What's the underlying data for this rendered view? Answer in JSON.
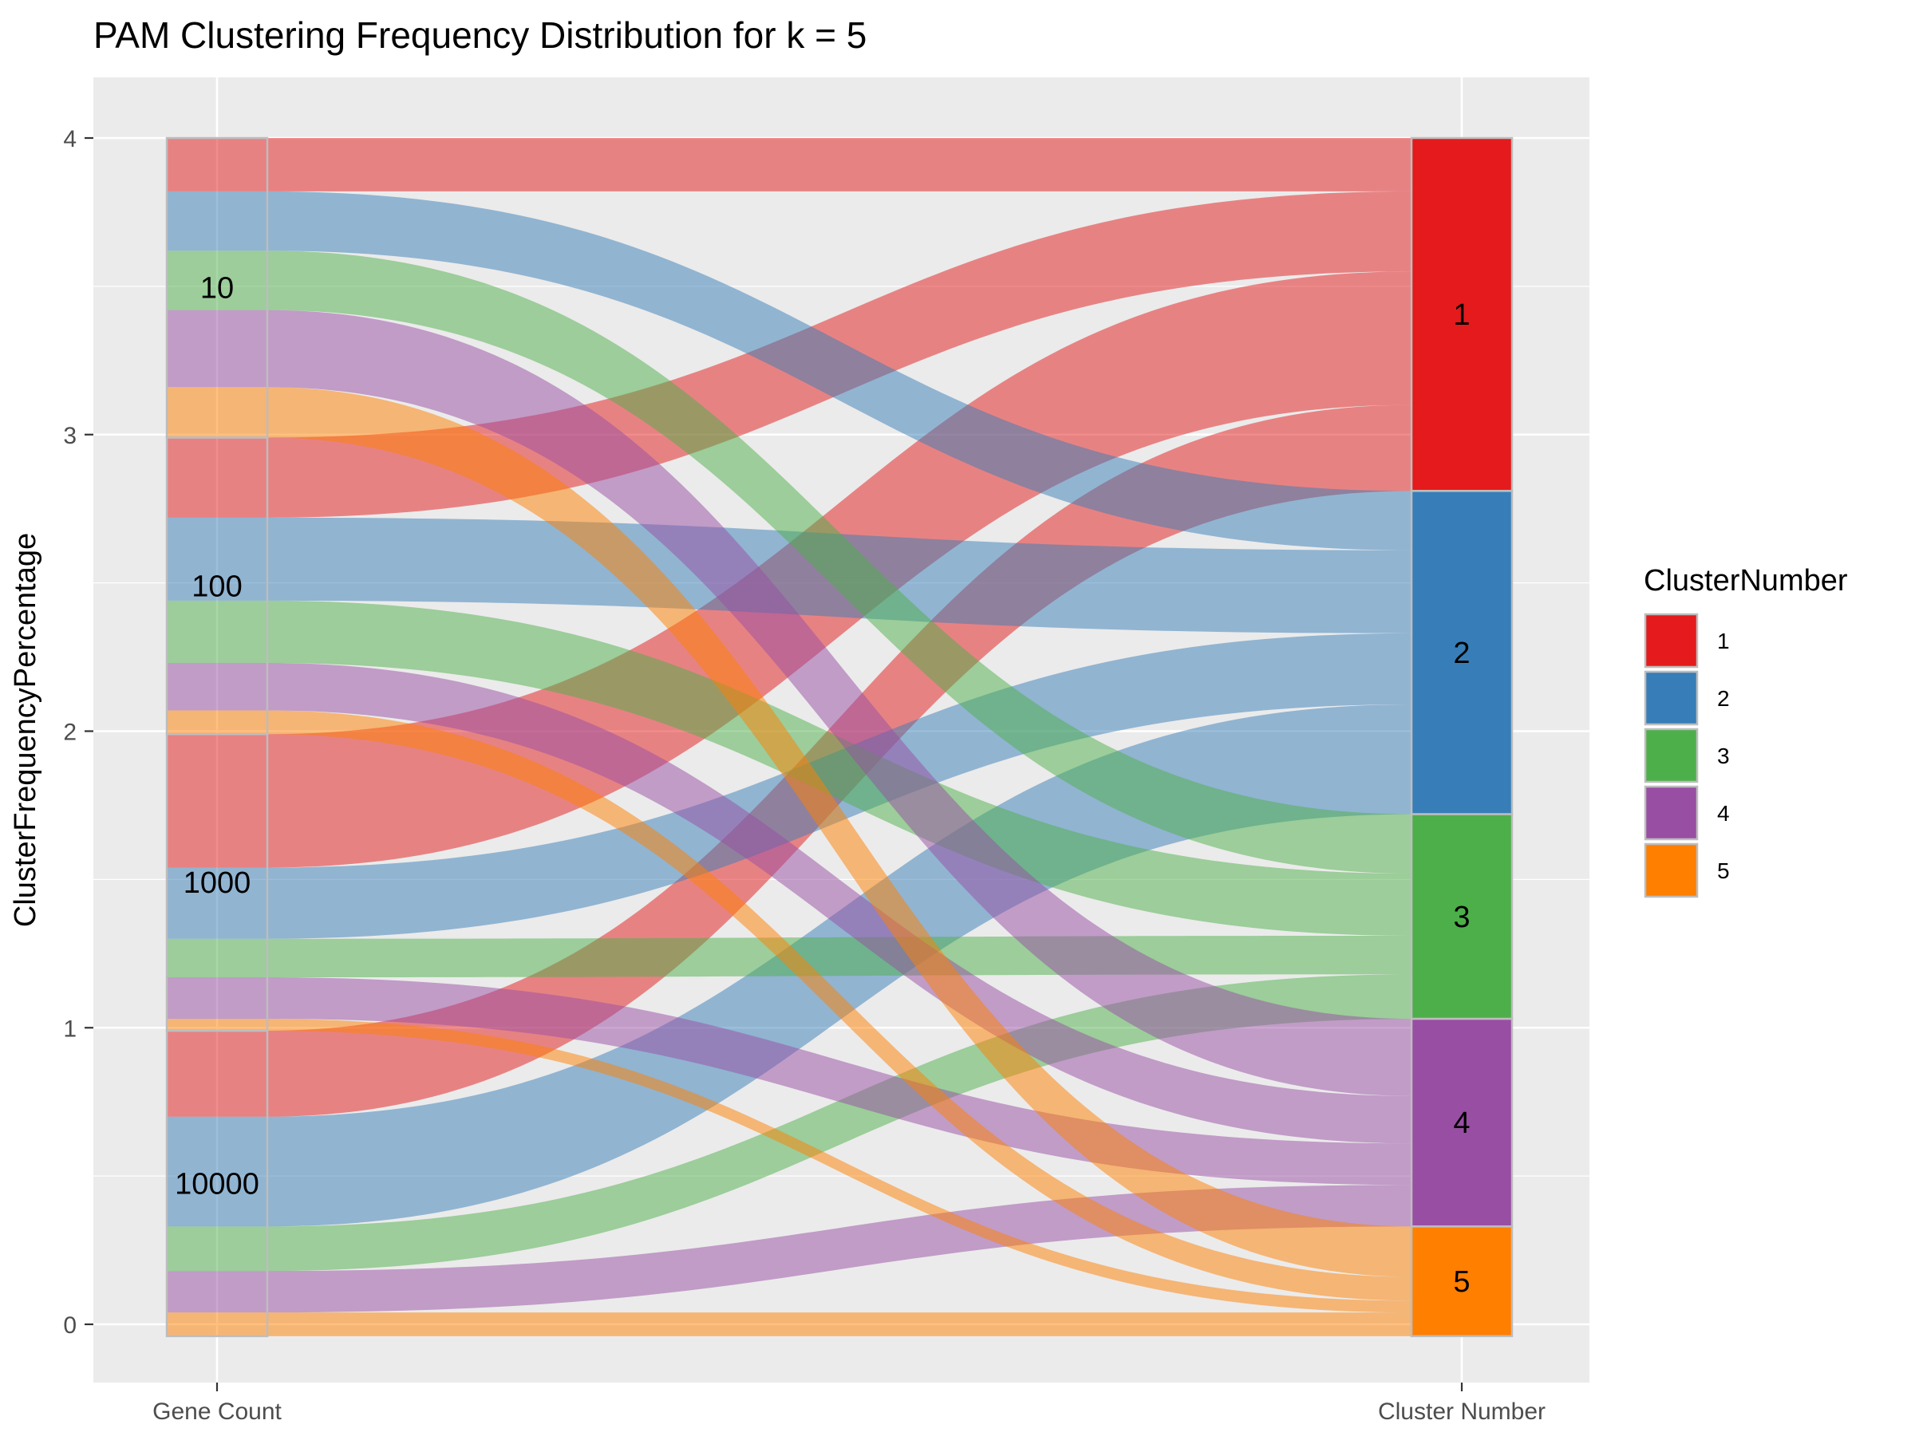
{
  "chart_data": {
    "type": "alluvial",
    "title": "PAM Clustering Frequency Distribution for k = 5",
    "ylabel": "ClusterFrequencyPercentage",
    "xlabel": "",
    "ylim": [
      0,
      4
    ],
    "y_ticks": [
      0,
      1,
      2,
      3,
      4
    ],
    "grid": true,
    "axes": [
      "Gene Count",
      "Cluster Number"
    ],
    "gene_counts": [
      "10",
      "100",
      "1000",
      "10000"
    ],
    "clusters": [
      "1",
      "2",
      "3",
      "4",
      "5"
    ],
    "colors": {
      "1": "#E41A1C",
      "2": "#377EB8",
      "3": "#4DAF4A",
      "4": "#984EA3",
      "5": "#FF7F00"
    },
    "legend": {
      "title": "ClusterNumber",
      "position": "right",
      "entries": [
        "1",
        "2",
        "3",
        "4",
        "5"
      ]
    },
    "flows": {
      "10": {
        "1": 0.18,
        "2": 0.2,
        "3": 0.2,
        "4": 0.26,
        "5": 0.17
      },
      "100": {
        "1": 0.27,
        "2": 0.28,
        "3": 0.21,
        "4": 0.16,
        "5": 0.08
      },
      "1000": {
        "1": 0.45,
        "2": 0.24,
        "3": 0.13,
        "4": 0.14,
        "5": 0.04
      },
      "10000": {
        "1": 0.29,
        "2": 0.37,
        "3": 0.15,
        "4": 0.14,
        "5": 0.08
      }
    }
  }
}
